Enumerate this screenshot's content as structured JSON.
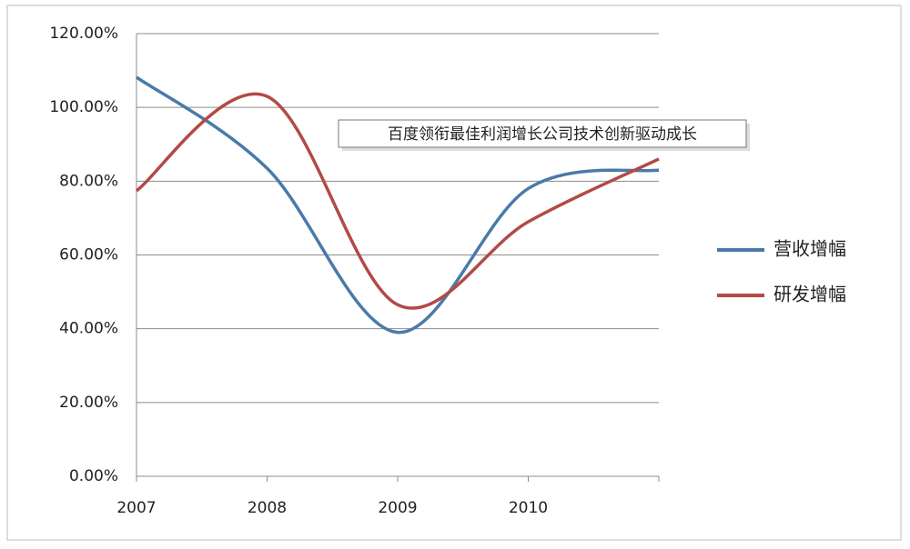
{
  "chart_data": {
    "type": "line",
    "annotation": "百度领衔最佳利润增长公司技术创新驱动成长",
    "categories": [
      "2007",
      "2008",
      "2009",
      "2010",
      null
    ],
    "series": [
      {
        "name": "营收增幅",
        "color": "#4a7aa8",
        "values": [
          108.2,
          83.5,
          39,
          78,
          83
        ]
      },
      {
        "name": "研发增幅",
        "color": "#b24a45",
        "values": [
          77.4,
          103,
          46.5,
          69,
          86
        ]
      }
    ],
    "ylim": [
      0,
      120
    ],
    "yticks": [
      {
        "value": 0,
        "label": "0.00%"
      },
      {
        "value": 20,
        "label": "20.00%"
      },
      {
        "value": 40,
        "label": "40.00%"
      },
      {
        "value": 60,
        "label": "60.00%"
      },
      {
        "value": 80,
        "label": "80.00%"
      },
      {
        "value": 100,
        "label": "100.00%"
      },
      {
        "value": 120,
        "label": "120.00%"
      }
    ],
    "grid": true,
    "smooth": true,
    "legend": "right"
  }
}
